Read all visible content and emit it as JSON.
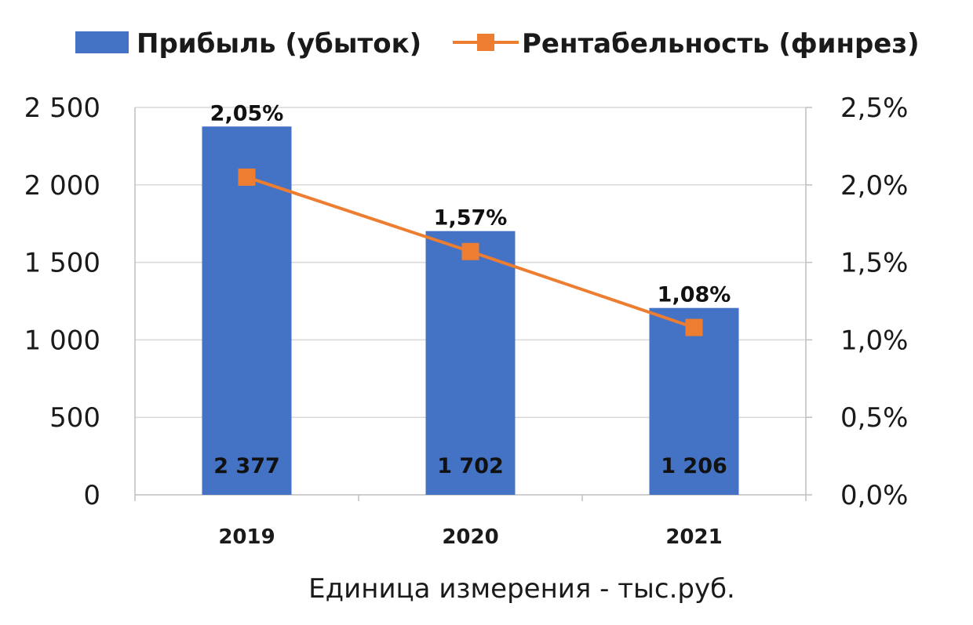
{
  "chart_data": {
    "type": "bar",
    "categories": [
      "2019",
      "2020",
      "2021"
    ],
    "series": [
      {
        "name": "Прибыль (убыток)",
        "kind": "bar",
        "axis": "left",
        "color": "#4472C4",
        "values": [
          2377,
          1702,
          1206
        ],
        "value_labels": [
          "2 377",
          "1 702",
          "1 206"
        ]
      },
      {
        "name": "Рентабельность (финрез)",
        "kind": "line",
        "axis": "right",
        "color": "#ED7D31",
        "marker": "square",
        "values": [
          2.05,
          1.57,
          1.08
        ],
        "value_labels": [
          "2,05%",
          "1,57%",
          "1,08%"
        ]
      }
    ],
    "y_left": {
      "ylim": [
        0,
        2500
      ],
      "ticks": [
        0,
        500,
        1000,
        1500,
        2000,
        2500
      ],
      "tick_labels": [
        "0",
        "500",
        "1 000",
        "1 500",
        "2 000",
        "2 500"
      ]
    },
    "y_right": {
      "ylim": [
        0,
        2.5
      ],
      "ticks": [
        0,
        0.5,
        1.0,
        1.5,
        2.0,
        2.5
      ],
      "tick_labels": [
        "0,0%",
        "0,5%",
        "1,0%",
        "1,5%",
        "2,0%",
        "2,5%"
      ]
    },
    "grid": true,
    "legend_position": "top",
    "note": "Единица измерения - тыс.руб."
  }
}
